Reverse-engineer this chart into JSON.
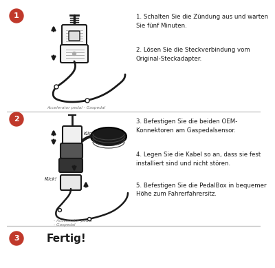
{
  "bg_color": "#ffffff",
  "divider_color": "#c8c8c8",
  "step_circle_color": "#c0392b",
  "step_text_color": "#ffffff",
  "text_color": "#1a1a1a",
  "step1_number": "1",
  "step2_number": "2",
  "step3_number": "3",
  "step1_text1": "1. Schalten Sie die Zündung aus und warten\nSie fünf Minuten.",
  "step1_text2": "2. Lösen Sie die Steckverbindung vom\nOriginal-Steckadapter.",
  "step2_text1": "3. Befestigen Sie die beiden OEM-\nKonnektoren am Gaspedalsensor.",
  "step2_text2": "4. Legen Sie die Kabel so an, dass sie fest\ninstalliert sind und nicht stören.",
  "step2_text3": "5. Befestigen Sie die PedalBox in bequemer\nHöhe zum Fahrerfahrersitz.",
  "step3_text": "Fertig!",
  "caption1": "Accelerator pedal - Gaspedal",
  "caption2": "- Accelerator pedal\n- Gaspedal",
  "klick": "Klick!"
}
